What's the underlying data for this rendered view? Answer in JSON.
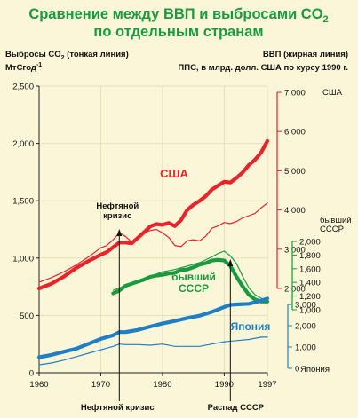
{
  "title": {
    "line1": "Сравнение между ВВП и выбросами CO",
    "line1_sub": "2",
    "line2": "по отдельным странам"
  },
  "left_axis": {
    "label_prefix": "Выбросы CO",
    "label_sub": "2",
    "label_suffix": " (тонкая линия)",
    "unit_main": "МтСгод",
    "unit_sup": "-1"
  },
  "right_axis": {
    "label1": "ВВП (жирная линия)",
    "label2": "ППС, в млрд. долл. США по курсу 1990 г."
  },
  "colors": {
    "background": "#fcf6d9",
    "usa": "#e8232a",
    "ussr": "#1a9a3e",
    "japan": "#1f7fc4",
    "title": "#1a9a3e",
    "grid": "#e5dfbe"
  },
  "chart_data": {
    "type": "line",
    "title": "Сравнение между ВВП и выбросами CO2 по отдельным странам",
    "xlabel": "",
    "x_ticks": [
      "1960",
      "1970",
      "1980",
      "1990",
      "1997"
    ],
    "xlim": [
      1960,
      1997
    ],
    "left_axis_ticks": [
      "0",
      "500",
      "1,000",
      "1,500",
      "2,000",
      "2,500"
    ],
    "ylim_left": [
      0,
      2500
    ],
    "grid": true,
    "right_axes": [
      {
        "name": "США",
        "ticks": [
          "2,000",
          "3,000",
          "4,000",
          "5,000",
          "6,000",
          "7,000"
        ],
        "range": [
          2000,
          7000
        ]
      },
      {
        "name": "бывший СССР",
        "ticks": [
          "1,000",
          "1,200",
          "1,400",
          "1,600",
          "1,800",
          "2,000"
        ],
        "range": [
          1000,
          2000
        ]
      },
      {
        "name": "Япония",
        "ticks": [
          "0",
          "1,000",
          "2,000",
          "3,000"
        ],
        "range": [
          0,
          3000
        ]
      }
    ],
    "series": [
      {
        "name": "США",
        "metric": "CO2",
        "axis": "left",
        "x": [
          1960,
          1962,
          1964,
          1966,
          1968,
          1970,
          1971,
          1972,
          1973,
          1974,
          1975,
          1976,
          1977,
          1978,
          1979,
          1980,
          1981,
          1982,
          1983,
          1984,
          1985,
          1986,
          1987,
          1988,
          1989,
          1990,
          1991,
          1992,
          1993,
          1994,
          1995,
          1996,
          1997
        ],
        "values": [
          790,
          830,
          880,
          940,
          1010,
          1090,
          1110,
          1160,
          1220,
          1190,
          1140,
          1180,
          1220,
          1240,
          1250,
          1220,
          1180,
          1110,
          1100,
          1150,
          1160,
          1150,
          1190,
          1260,
          1280,
          1310,
          1300,
          1320,
          1350,
          1370,
          1390,
          1440,
          1480
        ]
      },
      {
        "name": "США",
        "metric": "GDP",
        "axis": "США",
        "x": [
          1960,
          1962,
          1964,
          1966,
          1968,
          1970,
          1971,
          1972,
          1973,
          1974,
          1975,
          1976,
          1977,
          1978,
          1979,
          1980,
          1981,
          1982,
          1983,
          1984,
          1985,
          1986,
          1987,
          1988,
          1989,
          1990,
          1991,
          1992,
          1993,
          1994,
          1995,
          1996,
          1997
        ],
        "values": [
          2000,
          2120,
          2300,
          2520,
          2700,
          2860,
          2930,
          3050,
          3170,
          3170,
          3150,
          3290,
          3430,
          3580,
          3640,
          3620,
          3670,
          3590,
          3740,
          4000,
          4130,
          4230,
          4350,
          4520,
          4620,
          4720,
          4700,
          4820,
          4960,
          5150,
          5280,
          5470,
          5760
        ]
      },
      {
        "name": "бывший СССР",
        "metric": "CO2",
        "axis": "left",
        "x": [
          1972,
          1974,
          1976,
          1978,
          1980,
          1982,
          1984,
          1986,
          1988,
          1989,
          1990,
          1991,
          1992,
          1993,
          1994,
          1995,
          1996,
          1997
        ],
        "values": [
          720,
          760,
          800,
          840,
          880,
          900,
          930,
          960,
          1010,
          1040,
          1060,
          1020,
          950,
          840,
          740,
          680,
          650,
          630
        ]
      },
      {
        "name": "бывший СССР",
        "metric": "GDP",
        "axis": "бывший СССР",
        "x": [
          1972,
          1973,
          1974,
          1975,
          1976,
          1977,
          1978,
          1979,
          1980,
          1981,
          1982,
          1983,
          1984,
          1985,
          1986,
          1987,
          1988,
          1989,
          1990,
          1991,
          1992,
          1993,
          1994,
          1995,
          1996,
          1997
        ],
        "values": [
          1240,
          1280,
          1350,
          1380,
          1410,
          1440,
          1480,
          1500,
          1510,
          1530,
          1540,
          1580,
          1590,
          1620,
          1660,
          1680,
          1720,
          1730,
          1720,
          1640,
          1480,
          1340,
          1220,
          1150,
          1120,
          1120
        ]
      },
      {
        "name": "Япония",
        "metric": "CO2",
        "axis": "left",
        "x": [
          1960,
          1962,
          1964,
          1966,
          1968,
          1970,
          1972,
          1973,
          1974,
          1976,
          1978,
          1980,
          1982,
          1984,
          1986,
          1988,
          1990,
          1992,
          1994,
          1996,
          1997
        ],
        "values": [
          70,
          85,
          110,
          140,
          170,
          200,
          230,
          250,
          245,
          245,
          240,
          250,
          230,
          230,
          230,
          250,
          270,
          280,
          290,
          310,
          310
        ]
      },
      {
        "name": "Япония",
        "metric": "GDP",
        "axis": "Япония",
        "x": [
          1960,
          1962,
          1964,
          1966,
          1968,
          1970,
          1972,
          1973,
          1974,
          1975,
          1976,
          1978,
          1980,
          1982,
          1984,
          1986,
          1988,
          1990,
          1991,
          1992,
          1994,
          1996,
          1997
        ],
        "values": [
          520,
          630,
          780,
          920,
          1150,
          1380,
          1550,
          1700,
          1700,
          1750,
          1800,
          1960,
          2100,
          2220,
          2360,
          2470,
          2650,
          2880,
          2980,
          3000,
          3030,
          3180,
          3280
        ]
      }
    ],
    "series_labels": [
      "США",
      "бывший\nСССР",
      "Япония"
    ],
    "right_axis_tags": [
      "США",
      "бывший\nСССР",
      "Япония"
    ],
    "annotations": [
      {
        "text": "Нефтяной\nкризис",
        "x": 1973
      },
      {
        "text": "Нефтяной кризис",
        "x": 1973,
        "position": "bottom"
      },
      {
        "text": "Распад СССР",
        "x": 1991,
        "position": "bottom"
      }
    ]
  }
}
